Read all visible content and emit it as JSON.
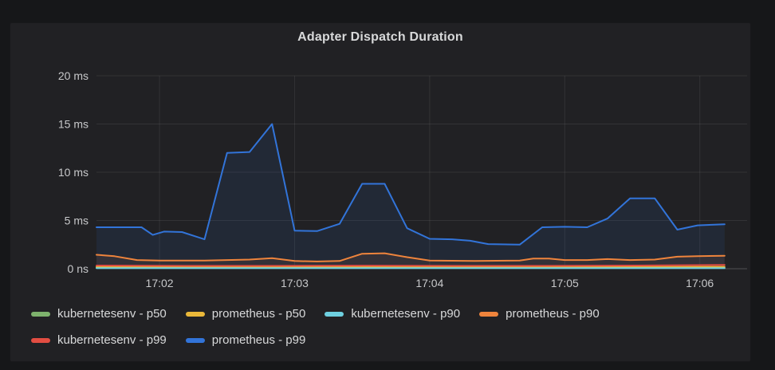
{
  "page": {
    "background": "#161719"
  },
  "panel": {
    "title": "Adapter Dispatch Duration",
    "background": "#212124"
  },
  "chart_data": {
    "type": "line",
    "title": "Adapter Dispatch Duration",
    "unit": "ms",
    "grid": true,
    "legend_position": "bottom",
    "colors": {
      "grid": "rgba(255,255,255,0.08)",
      "baseline": "rgba(255,255,255,0.22)",
      "axis_text": "#c7c8ca"
    },
    "y_axis": {
      "max": 20,
      "ticks": [
        {
          "v": 0,
          "label": "0 ns"
        },
        {
          "v": 5,
          "label": "5 ms"
        },
        {
          "v": 10,
          "label": "10 ms"
        },
        {
          "v": 15,
          "label": "15 ms"
        },
        {
          "v": 20,
          "label": "20 ms"
        }
      ]
    },
    "x_axis": {
      "t_max": 289,
      "ticks": [
        {
          "t": 28,
          "label": "17:02"
        },
        {
          "t": 88,
          "label": "17:03"
        },
        {
          "t": 148,
          "label": "17:04"
        },
        {
          "t": 208,
          "label": "17:05"
        },
        {
          "t": 268,
          "label": "17:06"
        }
      ]
    },
    "series": [
      {
        "name": "kubernetesenv - p50",
        "color": "#7EB26D",
        "points": [
          [
            0,
            0.1
          ],
          [
            70,
            0.1
          ],
          [
            140,
            0.12
          ],
          [
            210,
            0.1
          ],
          [
            279,
            0.1
          ]
        ]
      },
      {
        "name": "prometheus - p50",
        "color": "#EAB839",
        "points": [
          [
            0,
            0.18
          ],
          [
            60,
            0.17
          ],
          [
            120,
            0.2
          ],
          [
            180,
            0.17
          ],
          [
            240,
            0.18
          ],
          [
            279,
            0.2
          ]
        ]
      },
      {
        "name": "kubernetesenv - p90",
        "color": "#6ED0E0",
        "points": [
          [
            0,
            0.06
          ],
          [
            90,
            0.06
          ],
          [
            190,
            0.06
          ],
          [
            279,
            0.06
          ]
        ]
      },
      {
        "name": "prometheus - p90",
        "color": "#EF843C",
        "points": [
          [
            0,
            1.45
          ],
          [
            8,
            1.3
          ],
          [
            18,
            0.9
          ],
          [
            28,
            0.85
          ],
          [
            48,
            0.85
          ],
          [
            58,
            0.9
          ],
          [
            68,
            0.95
          ],
          [
            78,
            1.1
          ],
          [
            88,
            0.8
          ],
          [
            98,
            0.75
          ],
          [
            108,
            0.8
          ],
          [
            118,
            1.55
          ],
          [
            128,
            1.6
          ],
          [
            138,
            1.2
          ],
          [
            148,
            0.85
          ],
          [
            168,
            0.8
          ],
          [
            188,
            0.85
          ],
          [
            194,
            1.05
          ],
          [
            201,
            1.05
          ],
          [
            208,
            0.9
          ],
          [
            218,
            0.9
          ],
          [
            227,
            1.0
          ],
          [
            237,
            0.9
          ],
          [
            248,
            0.95
          ],
          [
            258,
            1.25
          ],
          [
            267,
            1.3
          ],
          [
            279,
            1.35
          ]
        ]
      },
      {
        "name": "kubernetesenv - p99",
        "color": "#E24D42",
        "points": [
          [
            0,
            0.33
          ],
          [
            40,
            0.3
          ],
          [
            80,
            0.3
          ],
          [
            120,
            0.32
          ],
          [
            160,
            0.3
          ],
          [
            200,
            0.3
          ],
          [
            240,
            0.33
          ],
          [
            279,
            0.4
          ]
        ]
      },
      {
        "name": "prometheus - p99",
        "color": "#3274D9",
        "points": [
          [
            0,
            4.3
          ],
          [
            10,
            4.3
          ],
          [
            20,
            4.3
          ],
          [
            25,
            3.5
          ],
          [
            30,
            3.85
          ],
          [
            38,
            3.8
          ],
          [
            48,
            3.05
          ],
          [
            58,
            12.0
          ],
          [
            68,
            12.1
          ],
          [
            78,
            15.0
          ],
          [
            88,
            3.95
          ],
          [
            98,
            3.9
          ],
          [
            108,
            4.65
          ],
          [
            118,
            8.8
          ],
          [
            128,
            8.8
          ],
          [
            138,
            4.2
          ],
          [
            148,
            3.1
          ],
          [
            158,
            3.05
          ],
          [
            166,
            2.9
          ],
          [
            174,
            2.55
          ],
          [
            188,
            2.5
          ],
          [
            198,
            4.3
          ],
          [
            208,
            4.35
          ],
          [
            218,
            4.3
          ],
          [
            227,
            5.2
          ],
          [
            237,
            7.3
          ],
          [
            248,
            7.3
          ],
          [
            258,
            4.05
          ],
          [
            267,
            4.5
          ],
          [
            279,
            4.6
          ]
        ]
      }
    ]
  }
}
